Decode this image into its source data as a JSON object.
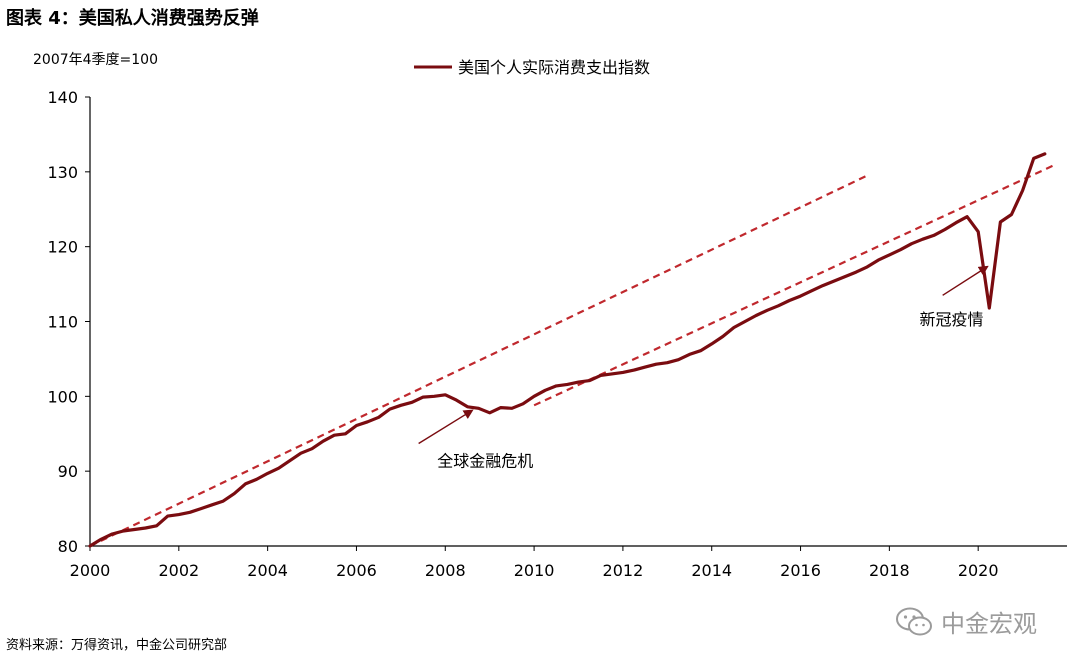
{
  "figure": {
    "title": "图表 4：美国私人消费强势反弹",
    "source": "资料来源：万得资讯，中金公司研究部",
    "watermark": "中金宏观",
    "watermark_icon": "wechat-icon"
  },
  "colors": {
    "series": "#7a0c10",
    "trend": "#c0282d",
    "axis": "#000000"
  },
  "chart_data": {
    "type": "line",
    "y_unit_label": "2007年4季度=100",
    "ylim": [
      80,
      140
    ],
    "yticks": [
      80,
      90,
      100,
      110,
      120,
      130,
      140
    ],
    "xlim": [
      2000,
      2021.75
    ],
    "xticks": [
      2000,
      2002,
      2004,
      2006,
      2008,
      2010,
      2012,
      2014,
      2016,
      2018,
      2020
    ],
    "grid": false,
    "legend_position": "top-center",
    "series": [
      {
        "name": "美国个人实际消费支出指数",
        "x": [
          2000.0,
          2000.25,
          2000.5,
          2000.75,
          2001.0,
          2001.25,
          2001.5,
          2001.75,
          2002.0,
          2002.25,
          2002.5,
          2002.75,
          2003.0,
          2003.25,
          2003.5,
          2003.75,
          2004.0,
          2004.25,
          2004.5,
          2004.75,
          2005.0,
          2005.25,
          2005.5,
          2005.75,
          2006.0,
          2006.25,
          2006.5,
          2006.75,
          2007.0,
          2007.25,
          2007.5,
          2007.75,
          2008.0,
          2008.25,
          2008.5,
          2008.75,
          2009.0,
          2009.25,
          2009.5,
          2009.75,
          2010.0,
          2010.25,
          2010.5,
          2010.75,
          2011.0,
          2011.25,
          2011.5,
          2011.75,
          2012.0,
          2012.25,
          2012.5,
          2012.75,
          2013.0,
          2013.25,
          2013.5,
          2013.75,
          2014.0,
          2014.25,
          2014.5,
          2014.75,
          2015.0,
          2015.25,
          2015.5,
          2015.75,
          2016.0,
          2016.25,
          2016.5,
          2016.75,
          2017.0,
          2017.25,
          2017.5,
          2017.75,
          2018.0,
          2018.25,
          2018.5,
          2018.75,
          2019.0,
          2019.25,
          2019.5,
          2019.75,
          2020.0,
          2020.25,
          2020.5,
          2020.75,
          2021.0,
          2021.25,
          2021.5
        ],
        "values": [
          80.0,
          80.9,
          81.6,
          82.0,
          82.2,
          82.4,
          82.7,
          84.0,
          84.2,
          84.5,
          85.0,
          85.5,
          86.0,
          87.0,
          88.3,
          88.9,
          89.7,
          90.4,
          91.4,
          92.4,
          93.0,
          94.0,
          94.8,
          95.0,
          96.1,
          96.6,
          97.2,
          98.3,
          98.8,
          99.2,
          99.9,
          100.0,
          100.2,
          99.5,
          98.6,
          98.4,
          97.8,
          98.5,
          98.4,
          99.0,
          100.0,
          100.8,
          101.4,
          101.6,
          101.9,
          102.1,
          102.8,
          103.0,
          103.2,
          103.5,
          103.9,
          104.3,
          104.5,
          104.9,
          105.6,
          106.1,
          107.0,
          108.0,
          109.2,
          110.0,
          110.8,
          111.5,
          112.1,
          112.8,
          113.4,
          114.1,
          114.8,
          115.4,
          116.0,
          116.6,
          117.3,
          118.2,
          118.9,
          119.6,
          120.4,
          121.0,
          121.5,
          122.3,
          123.2,
          124.0,
          122.0,
          111.8,
          123.3,
          124.3,
          127.5,
          131.8,
          132.4
        ]
      }
    ],
    "trend_lines": [
      {
        "name": "trend-2000-2007",
        "x": [
          2000,
          2017.5
        ],
        "values": [
          80.0,
          129.5
        ]
      },
      {
        "name": "trend-2010-2019",
        "x": [
          2010,
          2021.75
        ],
        "values": [
          98.8,
          131.0
        ]
      }
    ],
    "annotations": [
      {
        "text": "全球金融危机",
        "arrow_from": [
          2007.4,
          93.7
        ],
        "arrow_to": [
          2008.6,
          98.1
        ],
        "text_at": [
          2008.9,
          90.6
        ]
      },
      {
        "text": "新冠疫情",
        "arrow_from": [
          2019.2,
          113.5
        ],
        "arrow_to": [
          2020.2,
          117.3
        ],
        "text_at": [
          2019.4,
          109.5
        ]
      }
    ]
  }
}
